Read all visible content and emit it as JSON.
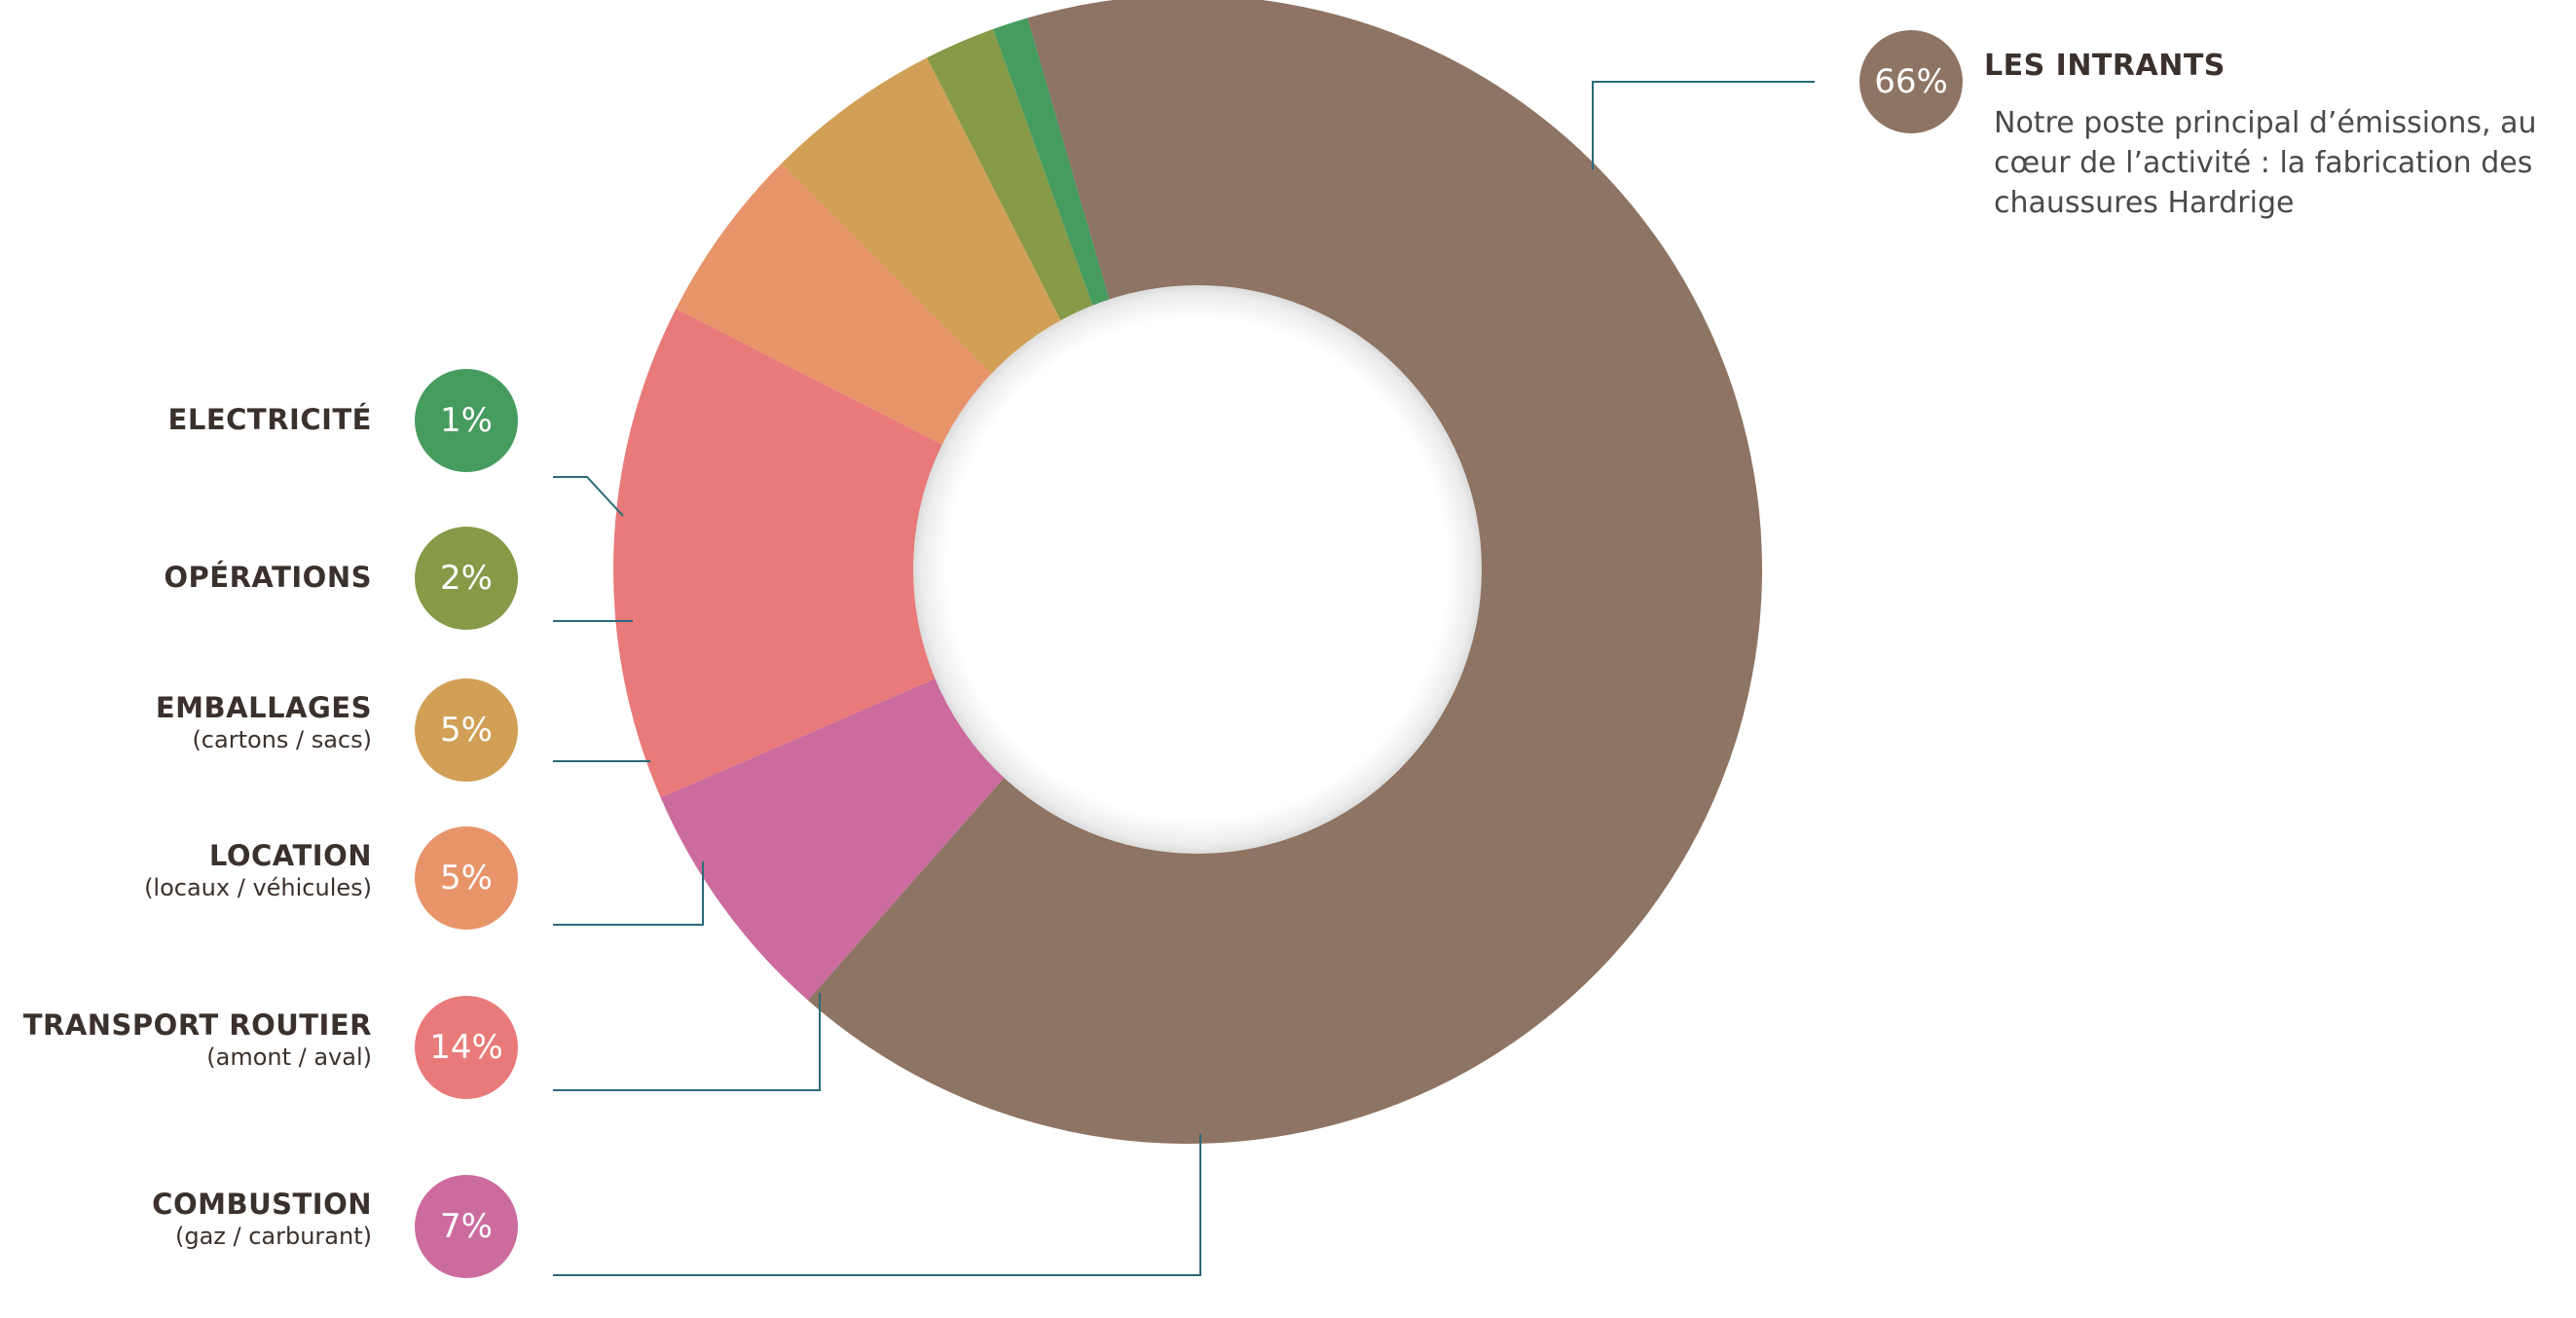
{
  "chart_data": {
    "type": "pie",
    "categories": [
      "LES INTRANTS",
      "COMBUSTION",
      "TRANSPORT ROUTIER",
      "LOCATION",
      "EMBALLAGES",
      "OPÉRATIONS",
      "ELECTRICITÉ"
    ],
    "values": [
      66,
      7,
      14,
      5,
      5,
      2,
      1
    ],
    "labels": [
      "66%",
      "7%",
      "14%",
      "5%",
      "5%",
      "2%",
      "1%"
    ],
    "sublabels": [
      "",
      "(gaz / carburant)",
      "(amont / aval)",
      "(locaux  / véhicules)",
      "(cartons / sacs)",
      "",
      ""
    ],
    "colors": [
      "#8e7463",
      "#cc6b9e",
      "#e87a79",
      "#e8946a",
      "#d1a056",
      "#869a47",
      "#469b5f"
    ],
    "description": "Notre poste principal d’émissions, au cœur de l’activité : la fabrication des chaussures Hardrige",
    "legend": "left"
  }
}
